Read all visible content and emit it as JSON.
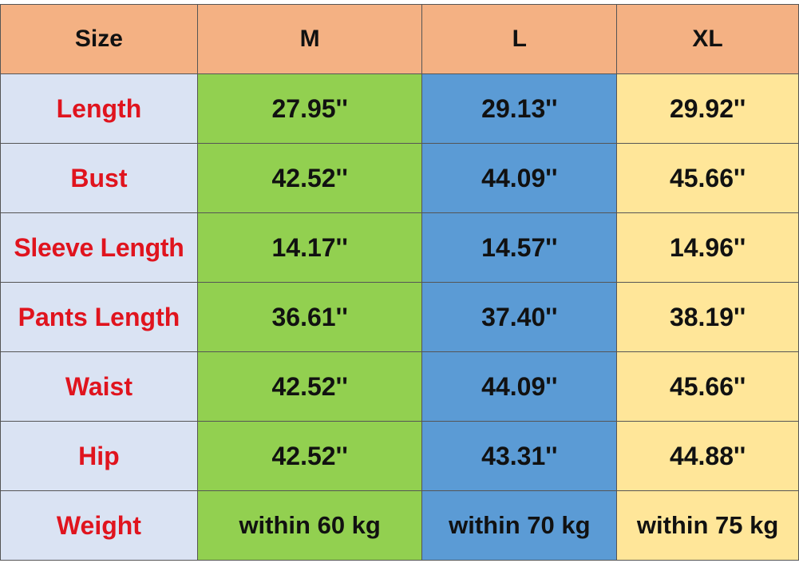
{
  "table": {
    "header": [
      "Size",
      "M",
      "L",
      "XL"
    ],
    "rows": [
      {
        "label": "Length",
        "values": [
          "27.95''",
          "29.13''",
          "29.92''"
        ]
      },
      {
        "label": "Bust",
        "values": [
          "42.52''",
          "44.09''",
          "45.66''"
        ]
      },
      {
        "label": "Sleeve Length",
        "values": [
          "14.17''",
          "14.57''",
          "14.96''"
        ]
      },
      {
        "label": "Pants Length",
        "values": [
          "36.61''",
          "37.40''",
          "38.19''"
        ]
      },
      {
        "label": "Waist",
        "values": [
          "42.52''",
          "44.09''",
          "45.66''"
        ]
      },
      {
        "label": "Hip",
        "values": [
          "42.52''",
          "43.31''",
          "44.88''"
        ]
      },
      {
        "label": "Weight",
        "values": [
          "within 60 kg",
          "within 70 kg",
          "within 75 kg"
        ]
      }
    ]
  },
  "colors": {
    "header_bg": "#f4b183",
    "label_bg": "#dae3f3",
    "label_text": "#e0141e",
    "m_bg": "#92d050",
    "l_bg": "#5b9bd5",
    "xl_bg": "#ffe699"
  }
}
